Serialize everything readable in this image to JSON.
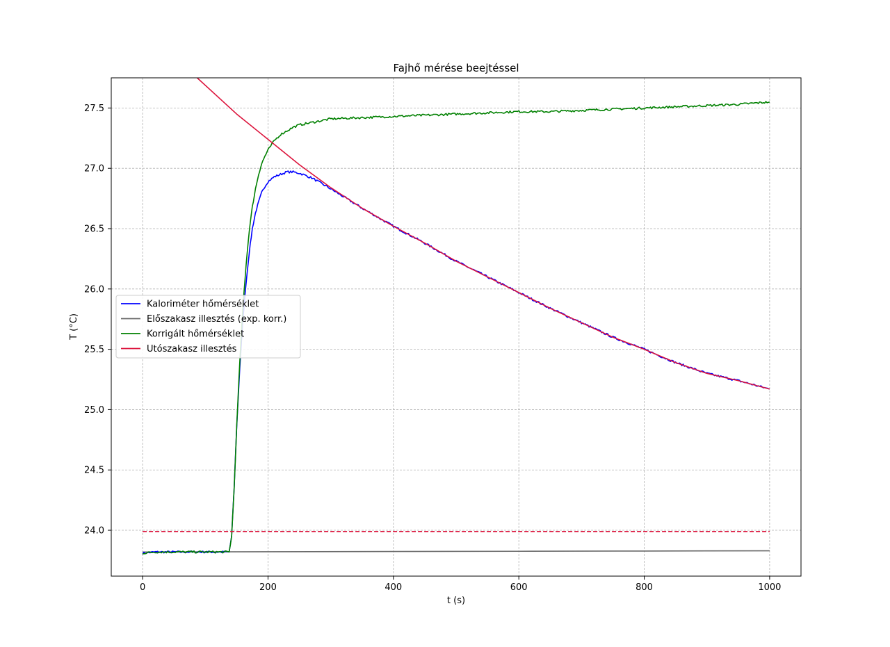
{
  "chart_data": {
    "type": "line",
    "title": "Fajhő mérése beejtéssel",
    "xlabel": "t (s)",
    "ylabel": "T (°C)",
    "xlim": [
      -50,
      1050
    ],
    "ylim": [
      23.62,
      27.75
    ],
    "xticks": [
      0,
      200,
      400,
      600,
      800,
      1000
    ],
    "yticks": [
      24.0,
      24.5,
      25.0,
      25.5,
      26.0,
      26.5,
      27.0,
      27.5
    ],
    "grid": true,
    "legend_position": "center-left",
    "series": [
      {
        "name": "Kaloriméter hőmérséklet",
        "color": "#0000ff",
        "x": [
          0,
          20,
          40,
          60,
          80,
          100,
          120,
          138,
          142,
          146,
          150,
          155,
          160,
          165,
          170,
          175,
          180,
          185,
          190,
          195,
          200,
          210,
          220,
          230,
          240,
          250,
          260,
          270,
          280,
          290,
          300,
          350,
          400,
          450,
          500,
          550,
          600,
          650,
          700,
          750,
          800,
          850,
          900,
          950,
          1000
        ],
        "y": [
          23.81,
          23.82,
          23.82,
          23.82,
          23.82,
          23.82,
          23.82,
          23.82,
          23.95,
          24.35,
          24.85,
          25.35,
          25.75,
          26.05,
          26.3,
          26.5,
          26.63,
          26.72,
          26.8,
          26.85,
          26.89,
          26.93,
          26.95,
          26.97,
          26.97,
          26.96,
          26.94,
          26.92,
          26.89,
          26.86,
          26.83,
          26.67,
          26.52,
          26.38,
          26.23,
          26.1,
          25.97,
          25.84,
          25.72,
          25.6,
          25.5,
          25.39,
          25.3,
          25.24,
          25.17
        ]
      },
      {
        "name": "Előszakasz illesztés (exp. korr.)",
        "color": "#696969",
        "x": [
          0,
          200,
          400,
          600,
          800,
          1000
        ],
        "y": [
          23.82,
          23.822,
          23.824,
          23.826,
          23.828,
          23.83
        ]
      },
      {
        "name": "Korrigált hőmérséklet",
        "color": "#008000",
        "x": [
          0,
          20,
          40,
          60,
          80,
          100,
          120,
          138,
          142,
          146,
          150,
          155,
          160,
          165,
          170,
          175,
          180,
          185,
          190,
          195,
          200,
          210,
          220,
          230,
          240,
          250,
          260,
          280,
          300,
          350,
          400,
          450,
          500,
          550,
          600,
          650,
          700,
          750,
          800,
          850,
          900,
          950,
          1000
        ],
        "y": [
          23.81,
          23.82,
          23.82,
          23.82,
          23.82,
          23.82,
          23.82,
          23.82,
          23.95,
          24.35,
          24.85,
          25.4,
          25.85,
          26.2,
          26.48,
          26.68,
          26.83,
          26.95,
          27.04,
          27.1,
          27.15,
          27.23,
          27.28,
          27.31,
          27.34,
          27.36,
          27.37,
          27.39,
          27.41,
          27.42,
          27.43,
          27.44,
          27.45,
          27.46,
          27.47,
          27.47,
          27.48,
          27.49,
          27.5,
          27.51,
          27.52,
          27.53,
          27.55
        ]
      },
      {
        "name": "Utószakasz illesztés",
        "color": "#dc143c",
        "x": [
          87,
          150,
          200,
          250,
          300,
          350,
          400,
          450,
          500,
          550,
          600,
          650,
          700,
          750,
          800,
          850,
          900,
          950,
          1000
        ],
        "y": [
          27.75,
          27.45,
          27.24,
          27.03,
          26.84,
          26.67,
          26.52,
          26.38,
          26.23,
          26.1,
          25.97,
          25.84,
          25.72,
          25.6,
          25.5,
          25.39,
          25.3,
          25.24,
          25.17
        ]
      },
      {
        "color": "#dc143c",
        "dashed": true,
        "x": [
          0,
          1000
        ],
        "y": [
          23.99,
          23.99
        ]
      }
    ]
  }
}
